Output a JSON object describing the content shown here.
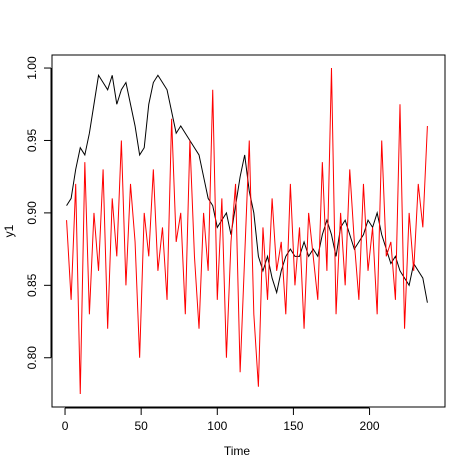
{
  "chart_data": {
    "type": "line",
    "xlabel": "Time",
    "ylabel": "y1",
    "x": [
      1,
      4,
      7,
      10,
      13,
      16,
      19,
      22,
      25,
      28,
      31,
      34,
      37,
      40,
      43,
      46,
      49,
      52,
      55,
      58,
      61,
      64,
      67,
      70,
      73,
      76,
      79,
      82,
      85,
      88,
      91,
      94,
      97,
      100,
      103,
      106,
      109,
      112,
      115,
      118,
      121,
      124,
      127,
      130,
      133,
      136,
      139,
      142,
      145,
      148,
      151,
      154,
      157,
      160,
      163,
      166,
      169,
      172,
      175,
      178,
      181,
      184,
      187,
      190,
      193,
      196,
      199,
      202,
      205,
      208,
      211,
      214,
      217,
      220,
      223,
      226,
      229,
      232,
      235,
      238
    ],
    "series": [
      {
        "color": "#000000",
        "values": [
          0.905,
          0.91,
          0.93,
          0.945,
          0.94,
          0.955,
          0.975,
          0.995,
          0.99,
          0.985,
          0.995,
          0.975,
          0.985,
          0.99,
          0.975,
          0.96,
          0.94,
          0.945,
          0.975,
          0.99,
          0.995,
          0.99,
          0.985,
          0.97,
          0.955,
          0.96,
          0.955,
          0.95,
          0.945,
          0.94,
          0.925,
          0.91,
          0.905,
          0.89,
          0.895,
          0.9,
          0.885,
          0.905,
          0.925,
          0.94,
          0.915,
          0.9,
          0.87,
          0.86,
          0.87,
          0.855,
          0.845,
          0.86,
          0.87,
          0.875,
          0.87,
          0.87,
          0.88,
          0.87,
          0.875,
          0.87,
          0.885,
          0.895,
          0.885,
          0.87,
          0.89,
          0.895,
          0.885,
          0.875,
          0.88,
          0.885,
          0.895,
          0.89,
          0.9,
          0.885,
          0.875,
          0.865,
          0.87,
          0.86,
          0.855,
          0.85,
          0.865,
          0.86,
          0.855,
          0.838
        ]
      },
      {
        "color": "#ff0000",
        "values": [
          0.895,
          0.84,
          0.92,
          0.775,
          0.935,
          0.83,
          0.9,
          0.86,
          0.93,
          0.82,
          0.91,
          0.87,
          0.95,
          0.85,
          0.92,
          0.88,
          0.8,
          0.9,
          0.87,
          0.93,
          0.86,
          0.89,
          0.84,
          0.965,
          0.88,
          0.9,
          0.83,
          0.95,
          0.87,
          0.82,
          0.9,
          0.86,
          0.985,
          0.84,
          0.91,
          0.8,
          0.88,
          0.92,
          0.79,
          0.87,
          0.95,
          0.83,
          0.78,
          0.89,
          0.84,
          0.91,
          0.86,
          0.88,
          0.83,
          0.92,
          0.85,
          0.89,
          0.82,
          0.9,
          0.87,
          0.84,
          0.935,
          0.86,
          1.0,
          0.83,
          0.9,
          0.85,
          0.93,
          0.88,
          0.84,
          0.92,
          0.86,
          0.89,
          0.83,
          0.95,
          0.87,
          0.88,
          0.84,
          0.975,
          0.82,
          0.9,
          0.86,
          0.92,
          0.89,
          0.96
        ]
      }
    ],
    "xlim": [
      -8.56,
      249.56
    ],
    "xticks": [
      0,
      50,
      100,
      150,
      200
    ],
    "ylim": [
      0.766,
      1.009
    ],
    "yticks": [
      {
        "value": 0.8,
        "label": "0.80"
      },
      0.85,
      {
        "value": 0.9,
        "label": "0.90"
      },
      0.95,
      {
        "value": 1.0,
        "label": "1.00"
      }
    ]
  }
}
